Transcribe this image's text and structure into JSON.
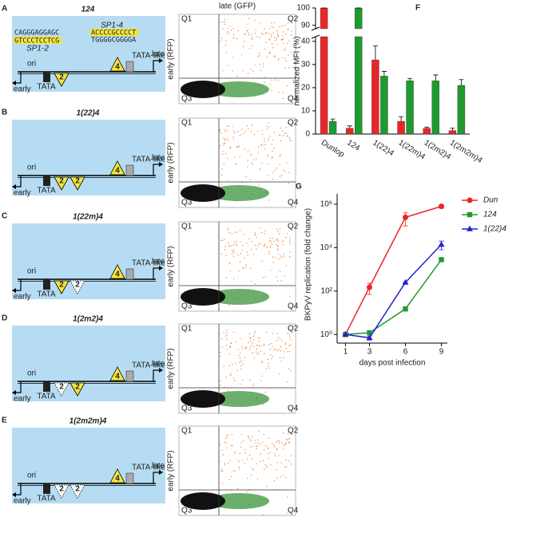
{
  "panels": [
    {
      "letter": "A",
      "title": "124",
      "ori": "ori",
      "early": "early",
      "late": "late",
      "tata": "TATA",
      "tata_like": "TATA-like",
      "sites": [
        {
          "label": "2",
          "mutated": false
        }
      ],
      "site4": "4",
      "sequences": {
        "sp1_4": "SP1-4",
        "right": [
          "ACCCCGCCCCT",
          "TGGGGCGGGGA"
        ],
        "left": [
          "CAGGGAGGAGC",
          "GTCCCTCCTCG"
        ],
        "sp1_2": "SP1-2"
      },
      "flow": {
        "x_label": "late (GFP)",
        "y_label": "early (RFP)",
        "quadrants": [
          "Q1",
          "Q2",
          "Q3",
          "Q4"
        ]
      }
    },
    {
      "letter": "B",
      "title": "1(22)4",
      "ori": "ori",
      "early": "early",
      "late": "late",
      "tata": "TATA",
      "tata_like": "TATA-like",
      "sites": [
        {
          "label": "2",
          "mutated": false
        },
        {
          "label": "2",
          "mutated": false
        }
      ],
      "site4": "4",
      "flow": {
        "y_label": "early (RFP)",
        "quadrants": [
          "Q1",
          "Q2",
          "Q3",
          "Q4"
        ]
      }
    },
    {
      "letter": "C",
      "title": "1(22m)4",
      "ori": "ori",
      "early": "early",
      "late": "late",
      "tata": "TATA",
      "tata_like": "TATA-like",
      "sites": [
        {
          "label": "2",
          "mutated": false
        },
        {
          "label": "2",
          "mutated": true
        }
      ],
      "site4": "4",
      "flow": {
        "y_label": "early (RFP)",
        "quadrants": [
          "Q1",
          "Q2",
          "Q3",
          "Q4"
        ]
      }
    },
    {
      "letter": "D",
      "title": "1(2m2)4",
      "ori": "ori",
      "early": "early",
      "late": "late",
      "tata": "TATA",
      "tata_like": "TATA-like",
      "sites": [
        {
          "label": "2",
          "mutated": true
        },
        {
          "label": "2",
          "mutated": false
        }
      ],
      "site4": "4",
      "flow": {
        "y_label": "early (RFP)",
        "quadrants": [
          "Q1",
          "Q2",
          "Q3",
          "Q4"
        ]
      }
    },
    {
      "letter": "E",
      "title": "1(2m2m)4",
      "ori": "ori",
      "early": "early",
      "late": "late",
      "tata": "TATA",
      "tata_like": "TATA-like",
      "sites": [
        {
          "label": "2",
          "mutated": true
        },
        {
          "label": "2",
          "mutated": true
        }
      ],
      "site4": "4",
      "flow": {
        "y_label": "early (RFP)",
        "quadrants": [
          "Q1",
          "Q2",
          "Q3",
          "Q4"
        ]
      }
    }
  ],
  "chart_data": [
    {
      "type": "bar",
      "letter": "F",
      "y_label": "normalized MFI (%)",
      "categories": [
        "Dunlop",
        "124",
        "1(22)4",
        "1(22m)4",
        "1(2m2)4",
        "1(2m2m)4"
      ],
      "series": [
        {
          "color": "#e8262a",
          "values": [
            100,
            2.5,
            32,
            5.5,
            2.5,
            1.5
          ],
          "errors": [
            0,
            1,
            6,
            2,
            0.5,
            1
          ]
        },
        {
          "color": "#1f9a2f",
          "values": [
            5.5,
            100,
            25,
            23,
            23,
            21
          ],
          "errors": [
            1,
            0,
            2,
            1,
            2.5,
            2.5
          ]
        }
      ],
      "ylim": [
        0,
        100
      ],
      "axis_break": [
        42,
        88
      ],
      "yticks": [
        0,
        10,
        20,
        30,
        40,
        90,
        100
      ]
    },
    {
      "type": "line",
      "letter": "G",
      "x_label": "days post infection",
      "y_label": "BKPyV replication (fold change)",
      "x": [
        1,
        3,
        6,
        9
      ],
      "xlim": [
        0.3,
        9.5
      ],
      "xticks": [
        1,
        3,
        6,
        9
      ],
      "ylim": [
        0.4,
        3000000
      ],
      "log_y": true,
      "yticks": [
        {
          "value": 1,
          "label": "10⁰"
        },
        {
          "value": 100,
          "label": "10²"
        },
        {
          "value": 10000,
          "label": "10⁴"
        },
        {
          "value": 1000000,
          "label": "10⁶"
        }
      ],
      "series": [
        {
          "name": "Dun",
          "color": "#e8262a",
          "marker": "circle",
          "values": [
            1,
            150,
            250000,
            800000
          ],
          "errors": [
            0,
            80,
            150000,
            150000
          ]
        },
        {
          "name": "124",
          "color": "#1f9a2f",
          "marker": "square",
          "values": [
            1,
            1.2,
            15,
            2800
          ],
          "errors": [
            0,
            0,
            0,
            0
          ]
        },
        {
          "name": "1(22)4",
          "color": "#2222cc",
          "marker": "triangle",
          "values": [
            1,
            0.7,
            250,
            14000
          ],
          "errors": [
            0,
            0.15,
            0,
            6000
          ]
        }
      ]
    }
  ]
}
